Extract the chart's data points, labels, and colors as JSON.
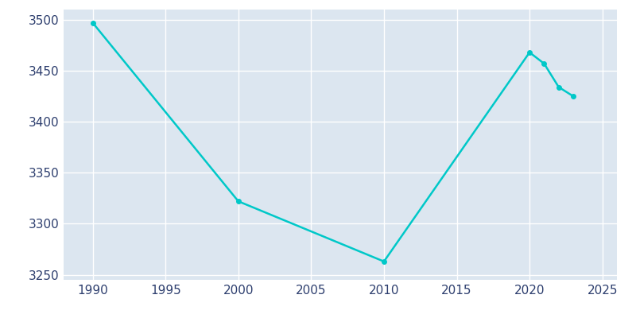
{
  "years": [
    1990,
    2000,
    2010,
    2020,
    2021,
    2022,
    2023
  ],
  "population": [
    3497,
    3322,
    3263,
    3468,
    3457,
    3434,
    3425
  ],
  "line_color": "#00C8C8",
  "plot_bg_color": "#DCE6F0",
  "fig_bg_color": "#FFFFFF",
  "grid_color": "#FFFFFF",
  "tick_color": "#2D3E6E",
  "ylim": [
    3245,
    3510
  ],
  "xlim": [
    1988,
    2026
  ],
  "yticks": [
    3250,
    3300,
    3350,
    3400,
    3450,
    3500
  ],
  "xticks": [
    1990,
    1995,
    2000,
    2005,
    2010,
    2015,
    2020,
    2025
  ],
  "linewidth": 1.8,
  "marker": "o",
  "markersize": 4,
  "tick_labelsize": 11
}
